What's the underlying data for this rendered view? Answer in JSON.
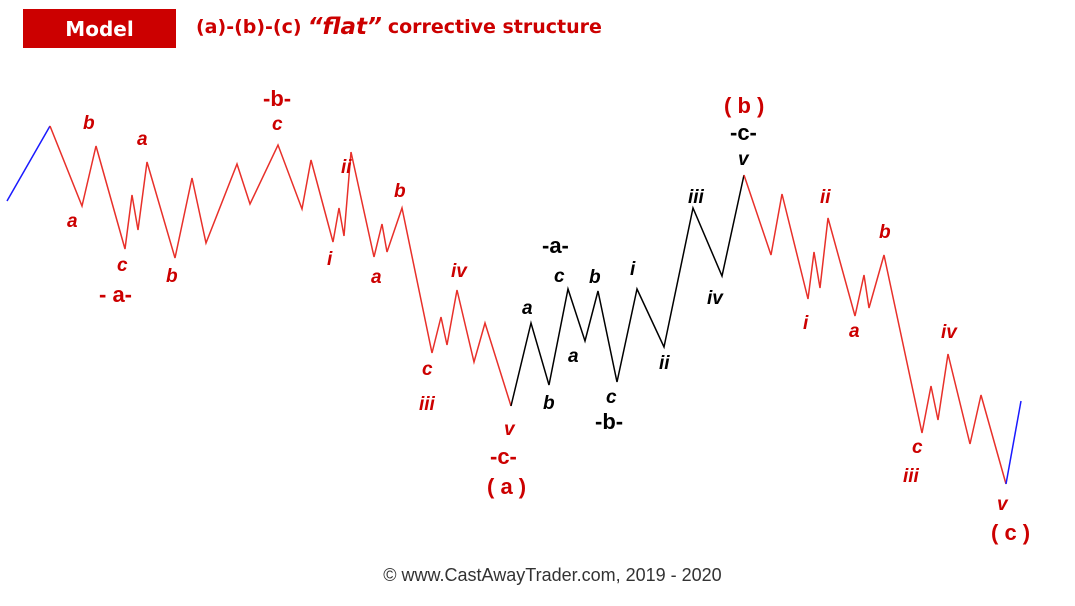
{
  "header": {
    "badge": "Model",
    "title_prefix": "(a)-(b)-(c)",
    "title_flat": "“flat”",
    "title_suffix": "corrective structure"
  },
  "footer": {
    "copyright": "© www.CastAwayTrader.com, 2019 - 2020"
  },
  "colors": {
    "red": "#e8302a",
    "label_red": "#cc0000",
    "black": "#000000",
    "blue": "#1a1aff"
  },
  "waves": {
    "lead_in": "blue",
    "wave_a": "red",
    "wave_b": "black",
    "wave_c": "red",
    "exit": "blue"
  },
  "labels": {
    "a1": {
      "a": "a",
      "b": "b",
      "a2": "a",
      "b2": "b",
      "c": "c",
      "wave": "- a-"
    },
    "b1": {
      "wave": "-b-",
      "c": "c",
      "i": "i",
      "ii": "ii",
      "a": "a",
      "b": "b"
    },
    "c1": {
      "iv": "iv",
      "c": "c",
      "iii": "iii",
      "v": "v",
      "wave": "-c-",
      "degree": "( a )"
    },
    "b_wave": {
      "a": "a",
      "b": "b",
      "a2": "a",
      "c": "c",
      "b2": "b",
      "sub_a": "-a-",
      "c2": "c",
      "sub_b": "-b-",
      "i": "i",
      "ii": "ii",
      "iii": "iii",
      "iv": "iv",
      "v": "v",
      "sub_c": "-c-",
      "degree": "( b )"
    },
    "c_wave": {
      "ii": "ii",
      "i": "i",
      "b": "b",
      "a": "a",
      "iv": "iv",
      "c": "c",
      "iii": "iii",
      "v": "v",
      "degree": "( c )"
    }
  }
}
